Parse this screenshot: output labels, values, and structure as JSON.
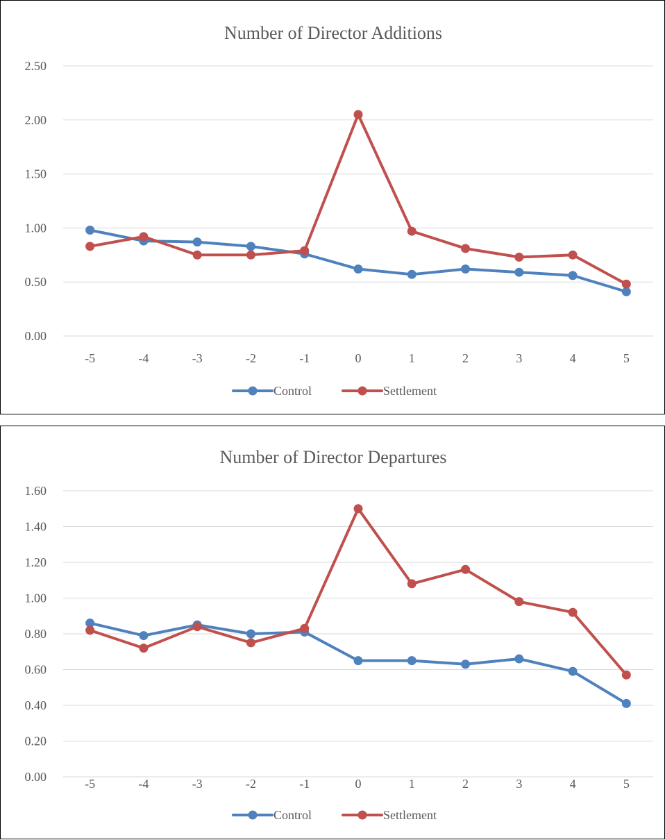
{
  "chart_data": [
    {
      "type": "line",
      "title": "Number of Director Additions",
      "xlabel": "",
      "ylabel": "",
      "categories": [
        "-5",
        "-4",
        "-3",
        "-2",
        "-1",
        "0",
        "1",
        "2",
        "3",
        "4",
        "5"
      ],
      "ylim": [
        0,
        2.5
      ],
      "yticks": [
        "0.00",
        "0.50",
        "1.00",
        "1.50",
        "2.00",
        "2.50"
      ],
      "grid": true,
      "legend_position": "bottom",
      "series": [
        {
          "name": "Control",
          "color": "#4F81BD",
          "values": [
            0.98,
            0.88,
            0.87,
            0.83,
            0.76,
            0.62,
            0.57,
            0.62,
            0.59,
            0.56,
            0.41
          ]
        },
        {
          "name": "Settlement",
          "color": "#C0504D",
          "values": [
            0.83,
            0.92,
            0.75,
            0.75,
            0.79,
            2.05,
            0.97,
            0.81,
            0.73,
            0.75,
            0.48
          ]
        }
      ]
    },
    {
      "type": "line",
      "title": "Number of Director Departures",
      "xlabel": "",
      "ylabel": "",
      "categories": [
        "-5",
        "-4",
        "-3",
        "-2",
        "-1",
        "0",
        "1",
        "2",
        "3",
        "4",
        "5"
      ],
      "ylim": [
        0,
        1.6
      ],
      "yticks": [
        "0.00",
        "0.20",
        "0.40",
        "0.60",
        "0.80",
        "1.00",
        "1.20",
        "1.40",
        "1.60"
      ],
      "grid": true,
      "legend_position": "bottom",
      "series": [
        {
          "name": "Control",
          "color": "#4F81BD",
          "values": [
            0.86,
            0.79,
            0.85,
            0.8,
            0.81,
            0.65,
            0.65,
            0.63,
            0.66,
            0.59,
            0.41
          ]
        },
        {
          "name": "Settlement",
          "color": "#C0504D",
          "values": [
            0.82,
            0.72,
            0.84,
            0.75,
            0.83,
            1.5,
            1.08,
            1.16,
            0.98,
            0.92,
            0.57
          ]
        }
      ]
    }
  ]
}
